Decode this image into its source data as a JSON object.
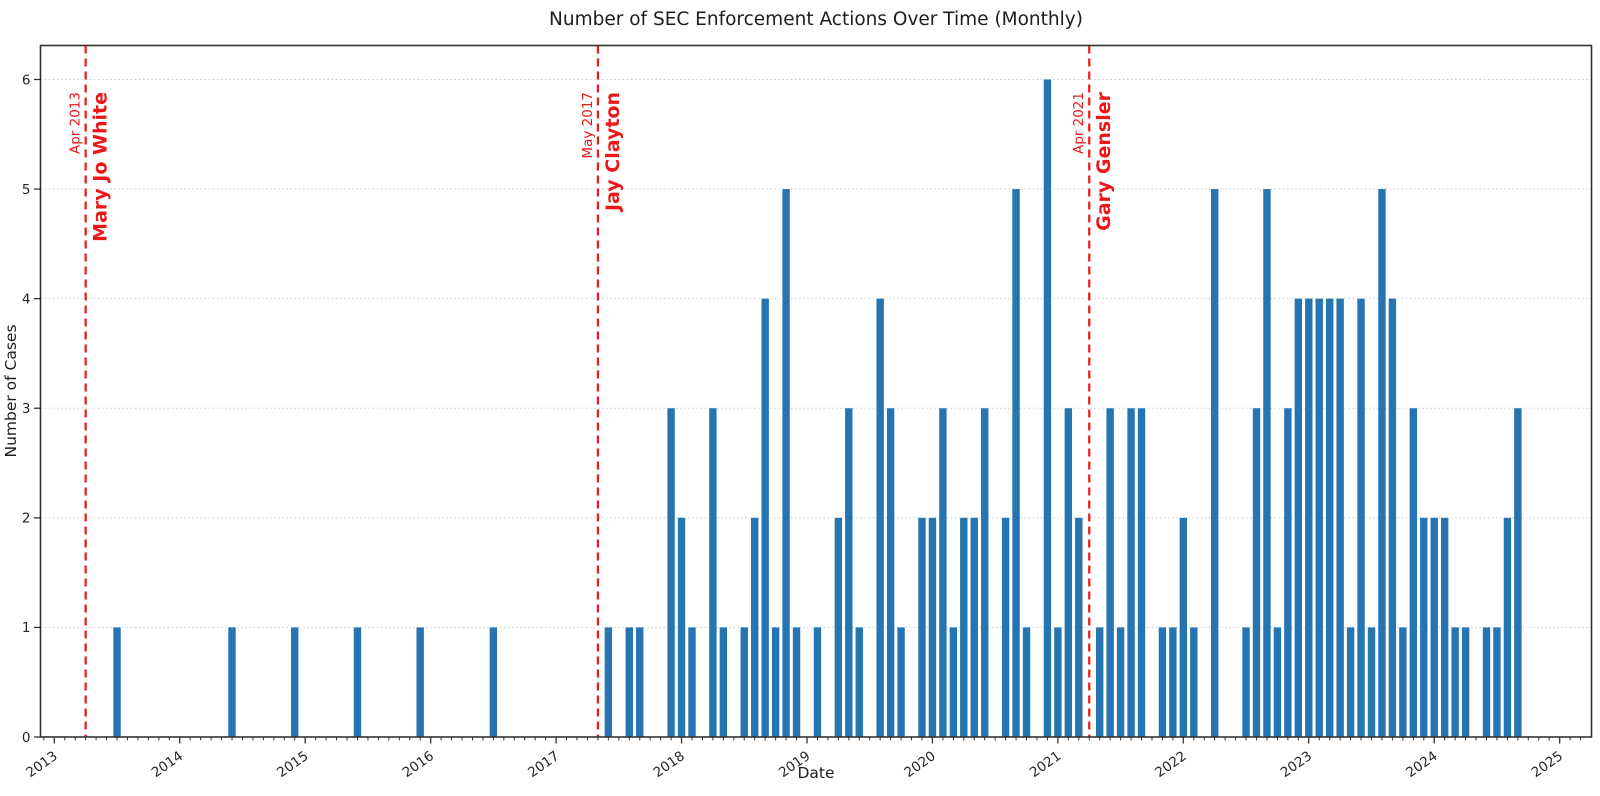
{
  "chart_data": {
    "type": "bar",
    "title": "Number of SEC Enforcement Actions Over Time (Monthly)",
    "xlabel": "Date",
    "ylabel": "Number of Cases",
    "ylim": [
      0,
      6.31
    ],
    "yticks": [
      "0",
      "1",
      "2",
      "3",
      "4",
      "5",
      "6"
    ],
    "xticks": [
      "2013",
      "2014",
      "2015",
      "2016",
      "2017",
      "2018",
      "2019",
      "2020",
      "2021",
      "2022",
      "2023",
      "2024",
      "2025"
    ],
    "grid": "horizontal-dotted",
    "legend": "none",
    "bar_color": "#2575b2",
    "annotation_color": "#ed1717",
    "grid_color": "#cccccc",
    "spine_color": "#333333",
    "months": [
      "2013-07",
      "2014-06",
      "2014-12",
      "2015-06",
      "2015-12",
      "2016-07",
      "2017-06",
      "2017-08",
      "2017-09",
      "2017-12",
      "2018-01",
      "2018-02",
      "2018-04",
      "2018-05",
      "2018-07",
      "2018-08",
      "2018-09",
      "2018-10",
      "2018-11",
      "2018-12",
      "2019-02",
      "2019-04",
      "2019-05",
      "2019-06",
      "2019-08",
      "2019-09",
      "2019-10",
      "2019-12",
      "2020-01",
      "2020-02",
      "2020-03",
      "2020-04",
      "2020-05",
      "2020-06",
      "2020-08",
      "2020-09",
      "2020-10",
      "2020-12",
      "2021-01",
      "2021-02",
      "2021-03",
      "2021-05",
      "2021-06",
      "2021-07",
      "2021-08",
      "2021-09",
      "2021-11",
      "2021-12",
      "2022-01",
      "2022-02",
      "2022-04",
      "2022-07",
      "2022-08",
      "2022-09",
      "2022-10",
      "2022-11",
      "2022-12",
      "2023-01",
      "2023-02",
      "2023-03",
      "2023-04",
      "2023-05",
      "2023-06",
      "2023-07",
      "2023-08",
      "2023-09",
      "2023-10",
      "2023-11",
      "2023-12",
      "2024-01",
      "2024-02",
      "2024-03",
      "2024-04",
      "2024-06",
      "2024-07",
      "2024-08",
      "2024-09"
    ],
    "values": [
      1,
      1,
      1,
      1,
      1,
      1,
      1,
      1,
      1,
      3,
      2,
      1,
      3,
      1,
      1,
      2,
      4,
      1,
      5,
      1,
      1,
      2,
      3,
      1,
      4,
      3,
      1,
      2,
      2,
      3,
      1,
      2,
      2,
      3,
      2,
      5,
      1,
      6,
      1,
      3,
      2,
      1,
      3,
      1,
      3,
      3,
      1,
      1,
      2,
      1,
      5,
      1,
      3,
      5,
      1,
      3,
      4,
      4,
      4,
      4,
      4,
      1,
      4,
      1,
      5,
      4,
      1,
      3,
      2,
      2,
      2,
      1,
      1,
      1,
      1,
      2,
      3
    ],
    "annotations": [
      {
        "date": "2013-04",
        "date_label": "Apr 2013",
        "name": "Mary Jo White"
      },
      {
        "date": "2017-05",
        "date_label": "May 2017",
        "name": "Jay Clayton"
      },
      {
        "date": "2021-04",
        "date_label": "Apr 2021",
        "name": "Gary Gensler"
      }
    ]
  }
}
